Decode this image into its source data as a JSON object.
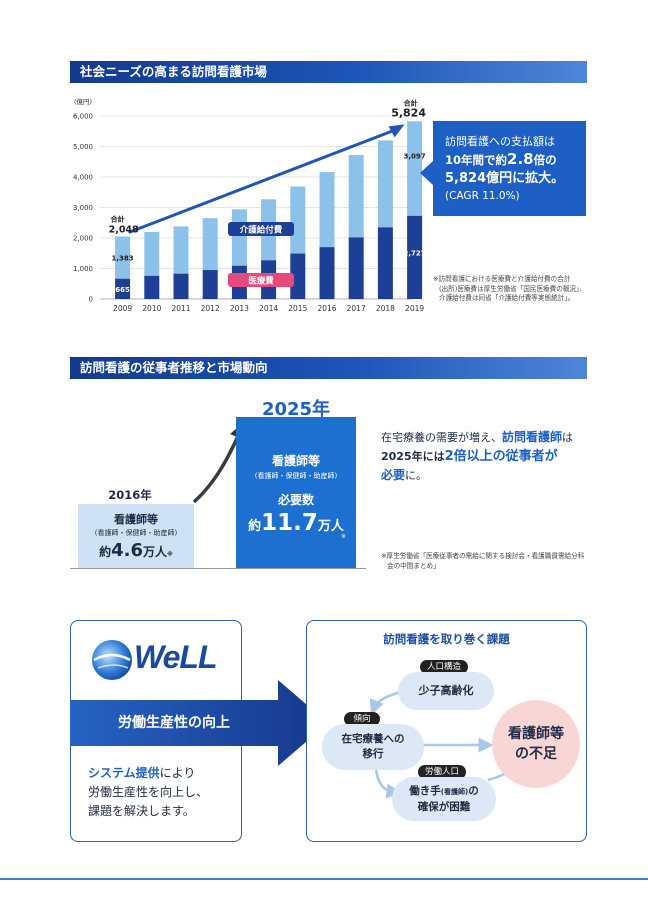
{
  "section1": {
    "title": "社会ニーズの高まる訪問看護市場"
  },
  "chart_data": {
    "type": "bar",
    "stacked": true,
    "ylabel": "(億円)",
    "yticks": [
      "0",
      "1,000",
      "2,000",
      "3,000",
      "4,000",
      "5,000",
      "6,000"
    ],
    "ylim": [
      0,
      6000
    ],
    "categories": [
      "2009",
      "2010",
      "2011",
      "2012",
      "2013",
      "2014",
      "2015",
      "2016",
      "2017",
      "2018",
      "2019"
    ],
    "series": [
      {
        "name": "医療費",
        "values": [
          665,
          760,
          830,
          950,
          1090,
          1270,
          1490,
          1700,
          2020,
          2350,
          2727
        ]
      },
      {
        "name": "介護給付費",
        "values": [
          1383,
          1440,
          1550,
          1700,
          1850,
          2000,
          2200,
          2460,
          2700,
          2850,
          3097
        ]
      }
    ],
    "totals": [
      2048,
      2200,
      2380,
      2650,
      2940,
      3270,
      3690,
      4160,
      4720,
      5200,
      5824
    ],
    "annotations": {
      "total_label": "合計",
      "first_total": "2,048",
      "last_total": "5,824",
      "first_kaigo": "1,383",
      "first_iryo": "665",
      "last_kaigo": "3,097",
      "last_iryo": "2,727"
    },
    "colors": {
      "iryo": "#1d3f95",
      "kaigo": "#8cc1ea",
      "arrow": "#1f56b8"
    }
  },
  "callout": {
    "line1": "訪問看護への支払額は",
    "line2a": "10年間で約",
    "line2b": "2.8",
    "line2c": "倍の",
    "line3": "5,824億円に拡大。",
    "line4": "(CAGR 11.0%)"
  },
  "chart_note": {
    "line1": "※訪問看護における医療費と介護給付費の合計",
    "line2": "(出所)医療費は厚生労働省「国民医療費の概況」、",
    "line3": "介護給付費は同省「介護給付費等実態統計」。"
  },
  "section2": {
    "title": "訪問看護の従事者推移と市場動向"
  },
  "workforce": {
    "year2016": "2016年",
    "year2025": "2025年",
    "left_title": "看護師等",
    "left_sub": "(看護師・保健師・助産師)",
    "left_value_pre": "約",
    "left_value": "4.6",
    "left_value_post": "万人",
    "mark": "※",
    "right_title": "看護師等",
    "right_sub": "(看護師・保健師・助産師)",
    "right_need": "必要数",
    "right_value_pre": "約",
    "right_value": "11.7",
    "right_value_post": "万人",
    "text_a": "在宅療養の需要が増え、",
    "text_b": "訪問看護師",
    "text_c": "は",
    "text_d": "2025年には",
    "text_e": "2倍以上の従事者が",
    "text_f": "必要",
    "text_g": "に。",
    "note1": "※厚生労働省「医療従事者の需給に関する検討会・看護職員需給分科",
    "note2": "会の中間まとめ」"
  },
  "well_panel": {
    "logo_text": "WeLL",
    "arrow_text": "労働生産性の向上",
    "desc_highlight": "システム提供",
    "desc_a": "により",
    "desc_b": "労働生産性を向上し、",
    "desc_c": "課題を解決します。"
  },
  "issues_panel": {
    "title": "訪問看護を取り巻く課題",
    "tag1": "人口構造",
    "bubble1": "少子高齢化",
    "tag2": "傾向",
    "bubble2a": "在宅療養への",
    "bubble2b": "移行",
    "tag3": "労働人口",
    "bubble3a": "働き手",
    "bubble3b": "(看護師)",
    "bubble3c": "の",
    "bubble3d": "確保が困難",
    "result_a": "看護師等",
    "result_b": "の不足"
  }
}
